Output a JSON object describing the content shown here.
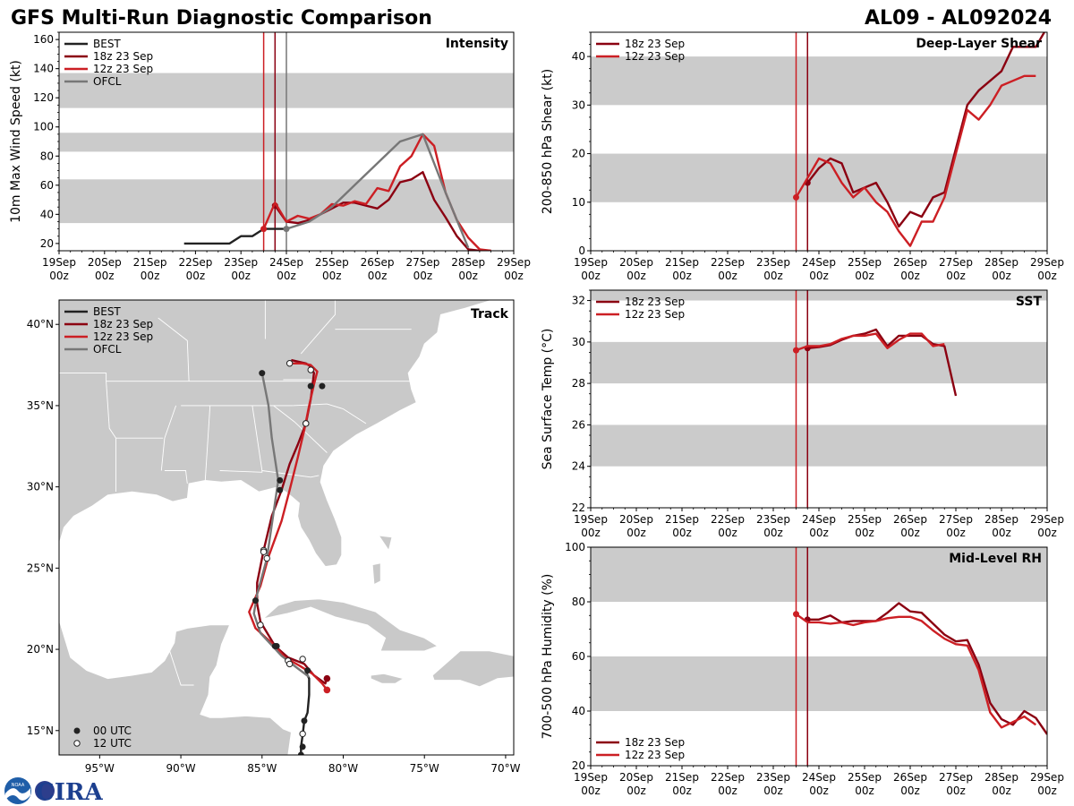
{
  "header": {
    "title": "GFS Multi-Run Diagnostic Comparison",
    "storm_id": "AL09 - AL092024"
  },
  "logo": {
    "text": "CIRA",
    "badge_text": "NOAA"
  },
  "colors": {
    "best": "#222222",
    "run18z": "#8b0011",
    "run12z": "#cc1f24",
    "ofcl": "#777777",
    "band": "#cbcbcb",
    "land": "#c9c9c9",
    "ocean": "#ffffff"
  },
  "time_axis": {
    "day_labels": [
      "19Sep",
      "20Sep",
      "21Sep",
      "22Sep",
      "23Sep",
      "24Sep",
      "25Sep",
      "26Sep",
      "27Sep",
      "28Sep",
      "29Sep"
    ],
    "hour_label": "00z"
  },
  "legends": {
    "best": "BEST",
    "run18z": "18z 23 Sep",
    "run12z": "12z 23 Sep",
    "ofcl": "OFCL",
    "utc00": "00 UTC",
    "utc12": "12 UTC"
  },
  "chart_data": [
    {
      "id": "intensity",
      "type": "line",
      "title": "Intensity",
      "ylabel": "10m Max Wind Speed (kt)",
      "xlim_days": [
        0,
        10
      ],
      "ylim": [
        15,
        165
      ],
      "yticks": [
        20,
        40,
        60,
        80,
        100,
        120,
        140,
        160
      ],
      "bands": [
        [
          34,
          64
        ],
        [
          83,
          96
        ],
        [
          113,
          137
        ]
      ],
      "init_lines": [
        {
          "series": "run12z",
          "day": 4.5
        },
        {
          "series": "run18z",
          "day": 4.75
        },
        {
          "series": "ofcl",
          "day": 5.0
        }
      ],
      "series": [
        {
          "key": "best",
          "name": "BEST",
          "x": [
            2.75,
            3.0,
            3.25,
            3.5,
            3.75,
            4.0,
            4.25,
            4.5,
            4.75,
            5.0
          ],
          "y": [
            20,
            20,
            20,
            20,
            20,
            25,
            25,
            30,
            30,
            30
          ]
        },
        {
          "key": "run18z",
          "name": "18z 23 Sep",
          "start_marker": true,
          "x": [
            4.75,
            5.0,
            5.25,
            5.5,
            5.75,
            6.0,
            6.25,
            6.5,
            6.75,
            7.0,
            7.25,
            7.5,
            7.75,
            8.0,
            8.25,
            8.5,
            8.75,
            9.0,
            9.25,
            9.5
          ],
          "y": [
            46,
            35,
            34,
            36,
            40,
            44,
            48,
            48,
            46,
            44,
            50,
            62,
            64,
            69,
            50,
            38,
            25,
            16,
            15,
            15
          ]
        },
        {
          "key": "run12z",
          "name": "12z 23 Sep",
          "start_marker": true,
          "x": [
            4.5,
            4.75,
            5.0,
            5.25,
            5.5,
            5.75,
            6.0,
            6.25,
            6.5,
            6.75,
            7.0,
            7.25,
            7.5,
            7.75,
            8.0,
            8.25,
            8.5,
            8.75,
            9.0,
            9.25,
            9.5
          ],
          "y": [
            30,
            48,
            35,
            39,
            37,
            40,
            47,
            46,
            49,
            47,
            58,
            56,
            73,
            80,
            95,
            87,
            55,
            36,
            24,
            16,
            15
          ]
        },
        {
          "key": "ofcl",
          "name": "OFCL",
          "start_marker": true,
          "x": [
            5.0,
            5.5,
            6.0,
            6.5,
            7.0,
            7.5,
            8.0,
            8.5,
            9.0
          ],
          "y": [
            30,
            35,
            45,
            60,
            75,
            90,
            95,
            55,
            17
          ]
        }
      ]
    },
    {
      "id": "shear",
      "type": "line",
      "title": "Deep-Layer Shear",
      "ylabel": "200-850 hPa Shear (kt)",
      "xlim_days": [
        0,
        10
      ],
      "ylim": [
        0,
        45
      ],
      "yticks": [
        0,
        10,
        20,
        30,
        40
      ],
      "bands": [
        [
          10,
          20
        ],
        [
          30,
          40
        ]
      ],
      "init_lines": [
        {
          "series": "run12z",
          "day": 4.5
        },
        {
          "series": "run18z",
          "day": 4.75
        }
      ],
      "series": [
        {
          "key": "run18z",
          "name": "18z 23 Sep",
          "start_marker": true,
          "x": [
            4.75,
            5.0,
            5.25,
            5.5,
            5.75,
            6.0,
            6.25,
            6.5,
            6.75,
            7.0,
            7.25,
            7.5,
            7.75,
            8.0,
            8.25,
            8.5,
            8.75,
            9.0,
            9.25,
            9.5,
            9.75,
            10.0
          ],
          "y": [
            14,
            17,
            19,
            18,
            12,
            13,
            14,
            10,
            5,
            8,
            7,
            11,
            12,
            21,
            30,
            33,
            35,
            37,
            42,
            42,
            42,
            46
          ]
        },
        {
          "key": "run12z",
          "name": "12z 23 Sep",
          "start_marker": true,
          "x": [
            4.5,
            4.75,
            5.0,
            5.25,
            5.5,
            5.75,
            6.0,
            6.25,
            6.5,
            6.75,
            7.0,
            7.25,
            7.5,
            7.75,
            8.0,
            8.25,
            8.5,
            8.75,
            9.0,
            9.25,
            9.5,
            9.75
          ],
          "y": [
            11,
            15,
            19,
            18,
            14,
            11,
            13,
            10,
            8,
            4,
            1,
            6,
            6,
            11,
            20,
            29,
            27,
            30,
            34,
            35,
            36,
            36
          ]
        }
      ]
    },
    {
      "id": "sst",
      "type": "line",
      "title": "SST",
      "ylabel": "Sea Surface Temp (°C)",
      "xlim_days": [
        0,
        10
      ],
      "ylim": [
        22,
        32.5
      ],
      "yticks": [
        22,
        24,
        26,
        28,
        30,
        32
      ],
      "bands": [
        [
          24,
          26
        ],
        [
          28,
          30
        ],
        [
          32,
          32.5
        ]
      ],
      "init_lines": [
        {
          "series": "run12z",
          "day": 4.5
        },
        {
          "series": "run18z",
          "day": 4.75
        }
      ],
      "series": [
        {
          "key": "run18z",
          "name": "18z 23 Sep",
          "start_marker": true,
          "x": [
            4.75,
            5.0,
            5.25,
            5.5,
            5.75,
            6.0,
            6.25,
            6.5,
            6.75,
            7.0,
            7.25,
            7.5,
            7.75,
            8.0
          ],
          "y": [
            29.7,
            29.75,
            29.85,
            30.1,
            30.3,
            30.4,
            30.6,
            29.8,
            30.3,
            30.3,
            30.3,
            29.9,
            29.8,
            27.4
          ]
        },
        {
          "key": "run12z",
          "name": "12z 23 Sep",
          "start_marker": true,
          "x": [
            4.5,
            4.75,
            5.0,
            5.25,
            5.5,
            5.75,
            6.0,
            6.25,
            6.5,
            6.75,
            7.0,
            7.25,
            7.5,
            7.75
          ],
          "y": [
            29.6,
            29.8,
            29.8,
            29.9,
            30.15,
            30.3,
            30.3,
            30.4,
            29.7,
            30.1,
            30.4,
            30.4,
            29.8,
            29.9
          ]
        }
      ]
    },
    {
      "id": "rh",
      "type": "line",
      "title": "Mid-Level RH",
      "ylabel": "700-500 hPa Humidity (%)",
      "xlim_days": [
        0,
        10
      ],
      "ylim": [
        20,
        100
      ],
      "yticks": [
        20,
        40,
        60,
        80,
        100
      ],
      "bands": [
        [
          40,
          60
        ],
        [
          80,
          100
        ]
      ],
      "legend_position": "bottom-left",
      "init_lines": [
        {
          "series": "run12z",
          "day": 4.5
        },
        {
          "series": "run18z",
          "day": 4.75
        }
      ],
      "series": [
        {
          "key": "run18z",
          "name": "18z 23 Sep",
          "start_marker": true,
          "x": [
            4.75,
            5.0,
            5.25,
            5.5,
            5.75,
            6.0,
            6.25,
            6.5,
            6.75,
            7.0,
            7.25,
            7.5,
            7.75,
            8.0,
            8.25,
            8.5,
            8.75,
            9.0,
            9.25,
            9.5,
            9.75,
            10.0
          ],
          "y": [
            73.5,
            73.5,
            75,
            72.5,
            73,
            73,
            73,
            76,
            79.5,
            76.5,
            76,
            72,
            68,
            65.5,
            66,
            57,
            43,
            37,
            35,
            40,
            37.5,
            31.5
          ]
        },
        {
          "key": "run12z",
          "name": "12z 23 Sep",
          "start_marker": true,
          "x": [
            4.5,
            4.75,
            5.0,
            5.25,
            5.5,
            5.75,
            6.0,
            6.25,
            6.5,
            6.75,
            7.0,
            7.25,
            7.5,
            7.75,
            8.0,
            8.25,
            8.5,
            8.75,
            9.0,
            9.25,
            9.5,
            9.75
          ],
          "y": [
            75.5,
            72.5,
            72.5,
            72,
            72.5,
            71.5,
            72.5,
            73,
            74,
            74.5,
            74.5,
            73,
            69.5,
            66.5,
            64.5,
            64,
            55,
            39.5,
            34,
            36,
            38,
            35
          ]
        }
      ]
    },
    {
      "id": "track",
      "type": "scatter",
      "title": "Track",
      "lon_range": [
        -97.5,
        -69.5
      ],
      "lat_range": [
        13.5,
        41.5
      ],
      "lon_ticks": [
        -95,
        -90,
        -85,
        -80,
        -75,
        -70
      ],
      "lon_tick_labels": [
        "95°W",
        "90°W",
        "85°W",
        "80°W",
        "75°W",
        "70°W"
      ],
      "lat_ticks": [
        15,
        20,
        25,
        30,
        35,
        40
      ],
      "lat_tick_labels": [
        "15°N",
        "20°N",
        "25°N",
        "30°N",
        "35°N",
        "40°N"
      ],
      "series": [
        {
          "key": "best",
          "name": "BEST",
          "lon": [
            -82.6,
            -82.6,
            -82.5,
            -82.4,
            -82.2,
            -82.1,
            -82.1,
            -82.2,
            -82.3
          ],
          "lat": [
            13.5,
            14.0,
            14.7,
            15.6,
            16.1,
            17.2,
            18.2,
            18.4,
            18.7
          ],
          "pts00": [
            [
              -82.6,
              13.5
            ],
            [
              -82.5,
              14.0
            ],
            [
              -82.4,
              15.6
            ],
            [
              -82.2,
              18.7
            ]
          ],
          "pts12": [
            [
              -82.5,
              14.8
            ]
          ]
        },
        {
          "key": "run18z",
          "name": "18z 23 Sep",
          "lon": [
            -81.0,
            -81.1,
            -81.8,
            -82.4,
            -83.4,
            -84.2,
            -85.1,
            -85.3,
            -85.3,
            -84.9,
            -84.4,
            -83.8,
            -83.3,
            -82.8,
            -82.3,
            -82.0,
            -81.9,
            -81.8,
            -82.0,
            -82.3,
            -83.2
          ],
          "lat": [
            18.3,
            17.9,
            18.4,
            19.1,
            19.5,
            20.2,
            21.7,
            22.8,
            24.1,
            26.1,
            28.2,
            29.8,
            31.4,
            32.6,
            33.9,
            35.4,
            36.2,
            37.0,
            37.4,
            37.6,
            37.8
          ],
          "pts00": [
            [
              -81.0,
              17.5
            ],
            [
              -84.2,
              20.2
            ],
            [
              -83.9,
              29.8
            ],
            [
              -82.0,
              36.2
            ]
          ],
          "pts12": [
            [
              -83.4,
              19.3
            ],
            [
              -84.9,
              26.1
            ],
            [
              -82.3,
              33.9
            ],
            [
              -82.0,
              37.2
            ]
          ]
        },
        {
          "key": "run12z",
          "name": "12z 23 Sep",
          "lon": [
            -81.0,
            -81.3,
            -81.9,
            -82.7,
            -83.6,
            -84.2,
            -85.4,
            -85.8,
            -85.1,
            -84.6,
            -83.8,
            -83.3,
            -82.8,
            -82.4,
            -82.1,
            -81.8,
            -81.6,
            -82.0,
            -82.5,
            -83.3
          ],
          "lat": [
            17.5,
            17.9,
            18.5,
            19.0,
            19.5,
            20.2,
            21.3,
            22.3,
            23.9,
            25.7,
            27.9,
            29.8,
            31.8,
            33.5,
            35.0,
            36.3,
            37.1,
            37.5,
            37.6,
            37.6
          ],
          "pts00": [
            [
              -81.0,
              17.5
            ],
            [
              -84.1,
              20.2
            ],
            [
              -81.3,
              36.2
            ]
          ],
          "pts12": [
            [
              -83.3,
              19.1
            ],
            [
              -84.9,
              26.0
            ],
            [
              -82.3,
              33.9
            ],
            [
              -83.3,
              37.6
            ]
          ]
        },
        {
          "key": "ofcl",
          "name": "OFCL",
          "lon": [
            -82.1,
            -82.9,
            -83.8,
            -85.1,
            -85.5,
            -85.3,
            -84.7,
            -84.0,
            -84.4,
            -84.6,
            -85.0
          ],
          "lat": [
            18.3,
            18.9,
            19.6,
            21.0,
            22.2,
            23.4,
            25.6,
            30.4,
            33.0,
            35.0,
            37.0
          ],
          "pts00": [
            [
              -85.4,
              23.0
            ],
            [
              -83.9,
              30.4
            ],
            [
              -85.0,
              37.0
            ]
          ],
          "pts12": [
            [
              -85.1,
              21.5
            ],
            [
              -84.7,
              25.6
            ],
            [
              -82.5,
              19.4
            ]
          ]
        }
      ]
    }
  ]
}
